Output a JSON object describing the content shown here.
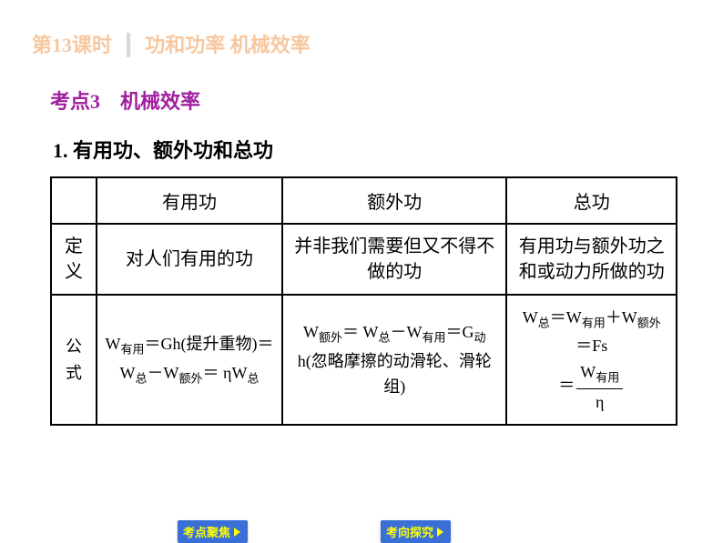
{
  "header": {
    "lesson": "第13课时",
    "title": "功和功率  机械效率"
  },
  "section": {
    "label": "考点3",
    "title": "机械效率"
  },
  "subsection": "1.  有用功、额外功和总功",
  "table": {
    "headers": {
      "col1": "有用功",
      "col2": "额外功",
      "col3": "总功"
    },
    "rows": {
      "definition": {
        "label": "定义",
        "col1": "对人们有用的功",
        "col2": "并非我们需要但又不得不做的功",
        "col3": "有用功与额外功之和或动力所做的功"
      },
      "formula": {
        "label": "公式",
        "col1_p1": "W",
        "col1_s1": "有用",
        "col1_p2": "＝Gh(提升重物)＝W",
        "col1_s2": "总",
        "col1_p3": "－W",
        "col1_s3": "额外",
        "col1_p4": "＝ ηW",
        "col1_s4": "总",
        "col2_p1": "W",
        "col2_s1": "额外",
        "col2_p2": "＝  W",
        "col2_s2": "总",
        "col2_p3": "－W",
        "col2_s3": "有用",
        "col2_p4": "＝G",
        "col2_s4": "动",
        "col2_p5": "h(忽略摩擦的动滑轮、滑轮组)",
        "col3_p1": "W",
        "col3_s1": "总",
        "col3_p2": "＝W",
        "col3_s2": "有用",
        "col3_p3": "＋W",
        "col3_s3": "额外",
        "col3_p4": "＝Fs",
        "col3_eq": "＝",
        "col3_num_p1": "W",
        "col3_num_s1": "有用",
        "col3_den": "η"
      }
    }
  },
  "buttons": {
    "focus": "考点聚焦",
    "explore": "考向探究"
  },
  "colors": {
    "header_text": "#f7c7a0",
    "section_text": "#a020a0",
    "button_bg": "#3a6fd8",
    "button_text": "#ffff00"
  }
}
